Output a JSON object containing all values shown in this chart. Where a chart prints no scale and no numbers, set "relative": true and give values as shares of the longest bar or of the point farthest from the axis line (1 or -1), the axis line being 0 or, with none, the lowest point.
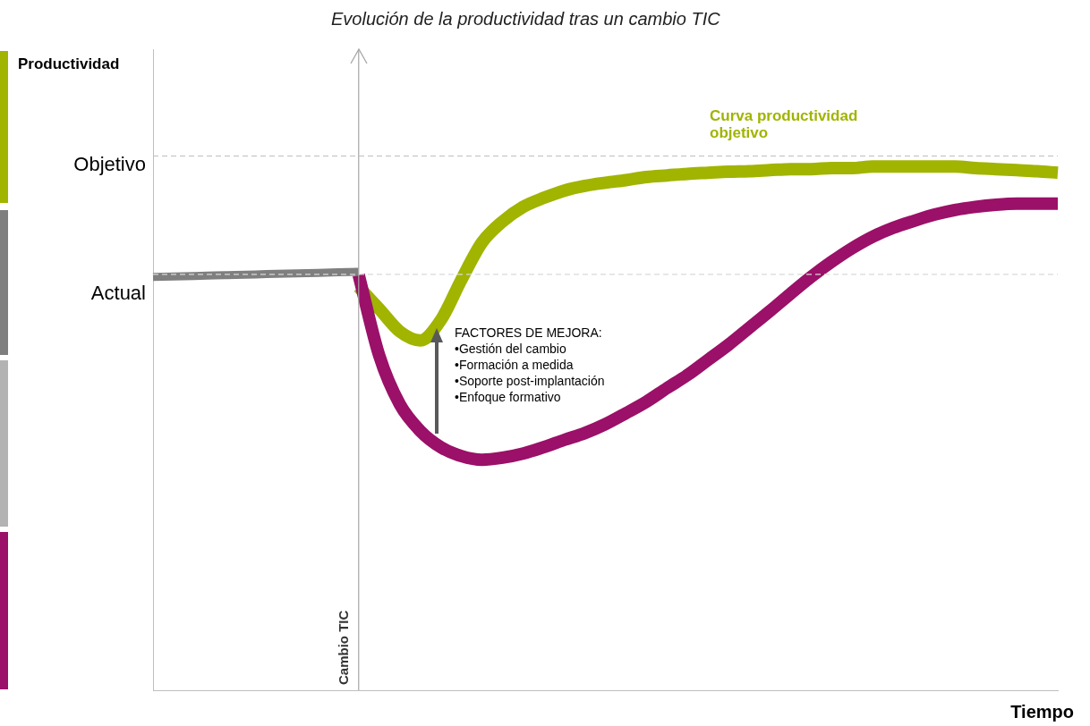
{
  "chart_data": {
    "type": "line",
    "title": "Evolución de la productividad tras un cambio TIC",
    "xlabel": "Tiempo",
    "relative": true,
    "marker": "none",
    "line_style": "solid",
    "categories": [
      null,
      null,
      null,
      null,
      null,
      null,
      null,
      null,
      null,
      null,
      null,
      null,
      null,
      null,
      null,
      null,
      null,
      null,
      null,
      null,
      null,
      null,
      null,
      null,
      null,
      null,
      null,
      null,
      null,
      null,
      null,
      null,
      null,
      null,
      null,
      null,
      null,
      null,
      null,
      null,
      null,
      null,
      null,
      null,
      null
    ],
    "series": [
      {
        "color": "#7f7f7f",
        "values": [
          0.789,
          0.79,
          0.791,
          0.792,
          0.793,
          0.794,
          0.795,
          0.796,
          0.797,
          0.798,
          0.799,
          null,
          null,
          null,
          null,
          null,
          null,
          null,
          null,
          null,
          null,
          null,
          null,
          null,
          null,
          null,
          null,
          null,
          null,
          null,
          null,
          null,
          null,
          null,
          null,
          null,
          null,
          null,
          null,
          null,
          null,
          null,
          null,
          null,
          null
        ]
      },
      {
        "color": "#9b1068",
        "values": [
          null,
          null,
          null,
          null,
          null,
          null,
          null,
          null,
          null,
          null,
          0.793,
          0.639,
          0.546,
          0.495,
          0.464,
          0.447,
          0.44,
          0.444,
          0.452,
          0.464,
          0.478,
          0.491,
          0.508,
          0.529,
          0.551,
          0.577,
          0.602,
          0.631,
          0.66,
          0.692,
          0.724,
          0.757,
          0.789,
          0.818,
          0.844,
          0.866,
          0.883,
          0.896,
          0.908,
          0.917,
          0.923,
          0.927,
          0.929,
          0.929,
          0.929
        ]
      },
      {
        "color": "#a0b400",
        "values": [
          null,
          null,
          null,
          null,
          null,
          null,
          null,
          null,
          null,
          null,
          0.77,
          0.728,
          0.685,
          0.668,
          0.707,
          0.784,
          0.855,
          0.895,
          0.923,
          0.94,
          0.954,
          0.963,
          0.969,
          0.974,
          0.98,
          0.983,
          0.986,
          0.988,
          0.99,
          0.991,
          0.993,
          0.995,
          0.995,
          0.997,
          0.997,
          1,
          1,
          1,
          1,
          1,
          0.997,
          0.995,
          0.993,
          0.991,
          0.988
        ]
      }
    ],
    "ref_lines": [
      {
        "axis": "y",
        "value": 1.02,
        "label": "Objetivo",
        "line_style": "dashed",
        "color": "#bfbfbf"
      },
      {
        "axis": "y",
        "value": 0.794,
        "label": "Actual",
        "line_style": "dashed",
        "color": "#d9d9d9"
      }
    ],
    "annotations": [
      "Curva productividad objetivo",
      "FACTORES DE MEJORA:",
      "•Gestión del cambio",
      "•Formación a medida",
      "•Soporte post-implantación",
      "•Enfoque formativo",
      "Cambio TIC",
      "Productividad"
    ]
  }
}
